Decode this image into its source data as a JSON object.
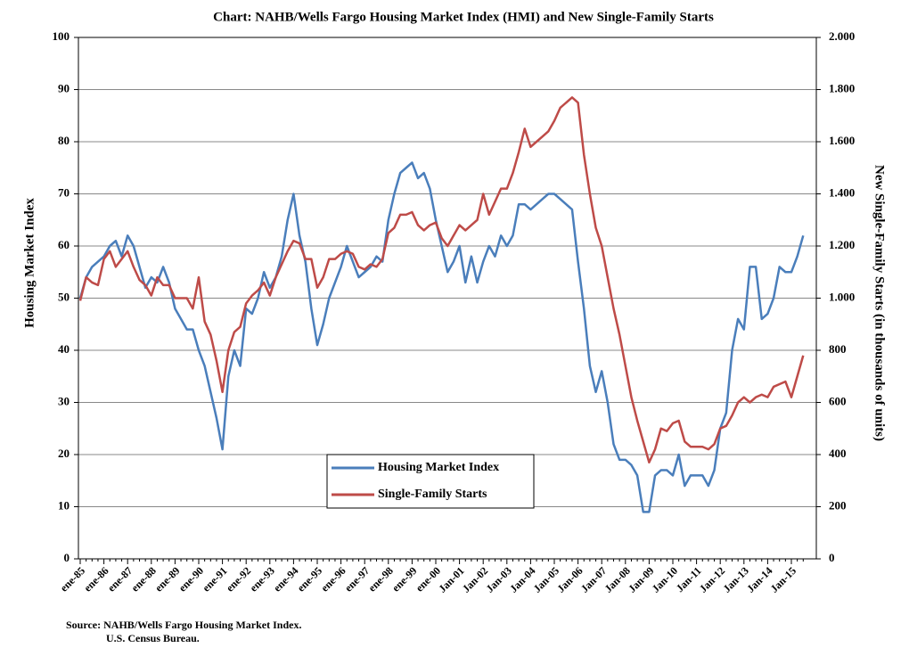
{
  "chart_data": {
    "type": "line",
    "title": "Chart:  NAHB/Wells Fargo Housing Market Index (HMI) and New Single-Family Starts",
    "y_label": "Housing Market Index",
    "y2_label": "New Single-Family Starts (in thousands of units)",
    "source": [
      "Source: NAHB/Wells Fargo Housing Market Index.",
      "U.S.  Census Bureau."
    ],
    "categories": [
      "ene-85",
      null,
      null,
      null,
      "ene-86",
      null,
      null,
      null,
      "ene-87",
      null,
      null,
      null,
      "ene-88",
      null,
      null,
      null,
      "ene-89",
      null,
      null,
      null,
      "ene-90",
      null,
      null,
      null,
      "ene-91",
      null,
      null,
      null,
      "ene-92",
      null,
      null,
      null,
      "ene-93",
      null,
      null,
      null,
      "ene-94",
      null,
      null,
      null,
      "ene-95",
      null,
      null,
      null,
      "ene-96",
      null,
      null,
      null,
      "ene-97",
      null,
      null,
      null,
      "ene-98",
      null,
      null,
      null,
      "ene-99",
      null,
      null,
      null,
      "ene-00",
      null,
      null,
      null,
      "Jan-01",
      null,
      null,
      null,
      "Jan-02",
      null,
      null,
      null,
      "Jan-03",
      null,
      null,
      null,
      "Jan-04",
      null,
      null,
      null,
      "Jan-05",
      null,
      null,
      null,
      "Jan-06",
      null,
      null,
      null,
      "Jan-07",
      null,
      null,
      null,
      "Jan-08",
      null,
      null,
      null,
      "Jan-09",
      null,
      null,
      null,
      "Jan-10",
      null,
      null,
      null,
      "Jan-11",
      null,
      null,
      null,
      "Jan-12",
      null,
      null,
      null,
      "Jan-13",
      null,
      null,
      null,
      "Jan-14",
      null,
      null,
      null,
      "Jan-15",
      null,
      null
    ],
    "series": [
      {
        "name": "Housing Market Index",
        "color": "#4a7ebb",
        "axis": "y",
        "values": [
          50,
          54,
          56,
          57,
          58,
          60,
          61,
          58,
          62,
          60,
          56,
          52,
          54,
          53,
          56,
          53,
          48,
          46,
          44,
          44,
          40,
          37,
          32,
          27,
          21,
          35,
          40,
          37,
          48,
          47,
          50,
          55,
          52,
          54,
          58,
          65,
          70,
          62,
          57,
          48,
          41,
          45,
          50,
          53,
          56,
          60,
          57,
          54,
          55,
          56,
          58,
          57,
          65,
          70,
          74,
          75,
          76,
          73,
          74,
          71,
          65,
          60,
          55,
          57,
          60,
          53,
          58,
          53,
          57,
          60,
          58,
          62,
          60,
          62,
          68,
          68,
          67,
          68,
          69,
          70,
          70,
          69,
          68,
          67,
          57,
          48,
          37,
          32,
          36,
          30,
          22,
          19,
          19,
          18,
          16,
          9,
          9,
          16,
          17,
          17,
          16,
          20,
          14,
          16,
          16,
          16,
          14,
          17,
          25,
          28,
          40,
          46,
          44,
          56,
          56,
          46,
          47,
          50,
          56,
          55,
          55,
          58,
          62
        ]
      },
      {
        "name": "Single-Family Starts",
        "color": "#be4b48",
        "axis": "y2",
        "values": [
          990,
          1080,
          1060,
          1050,
          1150,
          1180,
          1120,
          1150,
          1180,
          1120,
          1070,
          1050,
          1010,
          1080,
          1050,
          1050,
          1000,
          1000,
          1000,
          960,
          1080,
          910,
          860,
          760,
          640,
          800,
          870,
          890,
          980,
          1010,
          1030,
          1060,
          1010,
          1080,
          1130,
          1180,
          1220,
          1210,
          1150,
          1150,
          1040,
          1080,
          1150,
          1150,
          1170,
          1180,
          1170,
          1120,
          1110,
          1130,
          1120,
          1150,
          1250,
          1270,
          1320,
          1320,
          1330,
          1280,
          1260,
          1280,
          1290,
          1230,
          1200,
          1240,
          1280,
          1260,
          1280,
          1300,
          1400,
          1320,
          1370,
          1420,
          1420,
          1480,
          1560,
          1650,
          1580,
          1600,
          1620,
          1640,
          1680,
          1730,
          1750,
          1770,
          1750,
          1550,
          1400,
          1270,
          1200,
          1080,
          960,
          860,
          740,
          620,
          530,
          450,
          370,
          420,
          500,
          490,
          520,
          530,
          450,
          430,
          430,
          430,
          420,
          440,
          500,
          510,
          550,
          600,
          620,
          600,
          620,
          630,
          620,
          660,
          670,
          680,
          620,
          700,
          780
        ]
      }
    ],
    "ylim": [
      0,
      100
    ],
    "yticks": [
      0,
      10,
      20,
      30,
      40,
      50,
      60,
      70,
      80,
      90,
      100
    ],
    "y2lim": [
      0,
      2000
    ],
    "y2ticks": [
      0,
      200,
      400,
      600,
      800,
      {
        "value": 1000,
        "label": "1.000"
      },
      {
        "value": 1200,
        "label": "1.200"
      },
      {
        "value": 1400,
        "label": "1.400"
      },
      {
        "value": 1600,
        "label": "1.600"
      },
      {
        "value": 1800,
        "label": "1.800"
      },
      {
        "value": 2000,
        "label": "2.000"
      }
    ],
    "grid": true
  }
}
